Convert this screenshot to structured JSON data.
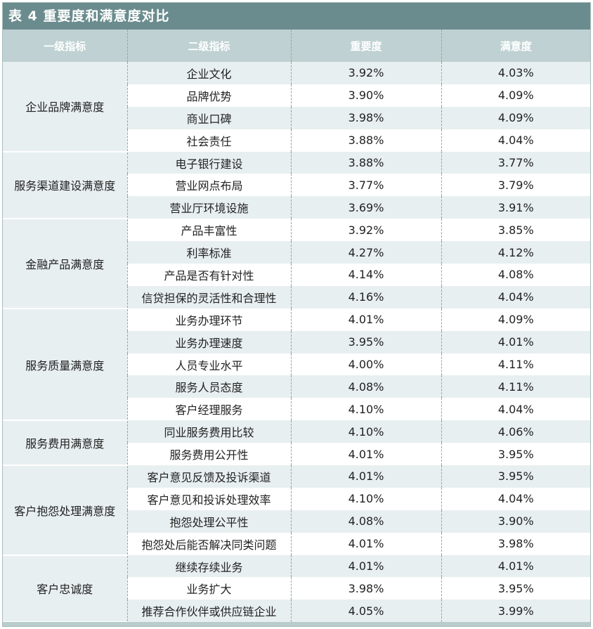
{
  "title": "表 4  重要度和满意度对比",
  "headers": [
    "一级指标",
    "二级指标",
    "重要度",
    "满意度"
  ],
  "groups": [
    {
      "name": "企业品牌满意度",
      "rows": [
        [
          "企业文化",
          "3.92%",
          "4.03%"
        ],
        [
          "品牌优势",
          "3.90%",
          "4.09%"
        ],
        [
          "商业口碑",
          "3.98%",
          "4.09%"
        ],
        [
          "社会责任",
          "3.88%",
          "4.04%"
        ]
      ]
    },
    {
      "name": "服务渠道建设满意度",
      "rows": [
        [
          "电子银行建设",
          "3.88%",
          "3.77%"
        ],
        [
          "营业网点布局",
          "3.77%",
          "3.79%"
        ],
        [
          "营业厅环境设施",
          "3.69%",
          "3.91%"
        ]
      ]
    },
    {
      "name": "金融产品满意度",
      "rows": [
        [
          "产品丰富性",
          "3.92%",
          "3.85%"
        ],
        [
          "利率标准",
          "4.27%",
          "4.12%"
        ],
        [
          "产品是否有针对性",
          "4.14%",
          "4.08%"
        ],
        [
          "信贷担保的灵活性和合理性",
          "4.16%",
          "4.04%"
        ]
      ]
    },
    {
      "name": "服务质量满意度",
      "rows": [
        [
          "业务办理环节",
          "4.01%",
          "4.09%"
        ],
        [
          "业务办理速度",
          "3.95%",
          "4.01%"
        ],
        [
          "人员专业水平",
          "4.00%",
          "4.11%"
        ],
        [
          "服务人员态度",
          "4.08%",
          "4.11%"
        ],
        [
          "客户经理服务",
          "4.10%",
          "4.04%"
        ]
      ]
    },
    {
      "name": "服务费用满意度",
      "rows": [
        [
          "同业服务费用比较",
          "4.10%",
          "4.06%"
        ],
        [
          "服务费用公开性",
          "4.01%",
          "3.95%"
        ]
      ]
    },
    {
      "name": "客户抱怨处理满意度",
      "rows": [
        [
          "客户意见反馈及投诉渠道",
          "4.01%",
          "3.95%"
        ],
        [
          "客户意见和投诉处理效率",
          "4.10%",
          "4.04%"
        ],
        [
          "抱怨处理公平性",
          "4.08%",
          "3.90%"
        ],
        [
          "抱怨处后能否解决同类问题",
          "4.01%",
          "3.98%"
        ]
      ]
    },
    {
      "name": "客户忠诚度",
      "rows": [
        [
          "继续存续业务",
          "4.01%",
          "4.01%"
        ],
        [
          "业务扩大",
          "3.98%",
          "3.95%"
        ],
        [
          "推荐合作伙伴或供应链企业",
          "4.05%",
          "3.99%"
        ]
      ]
    }
  ]
}
